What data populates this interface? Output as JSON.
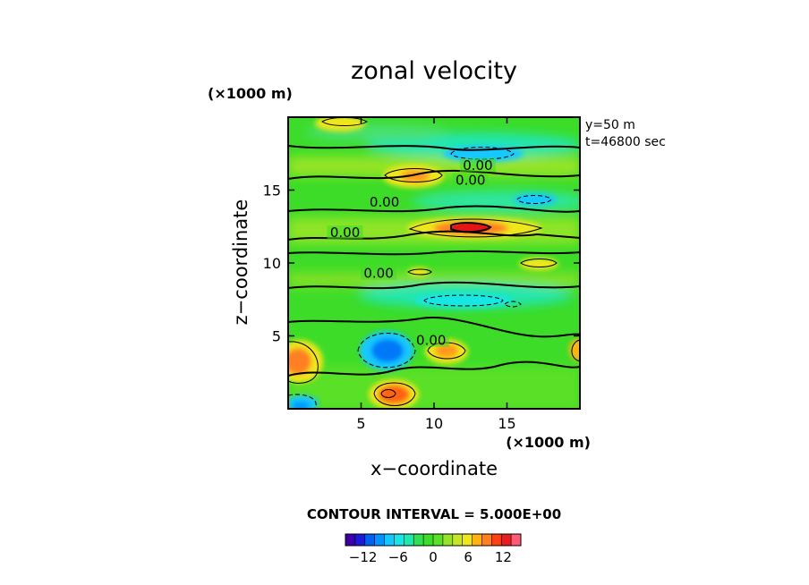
{
  "chart_data": {
    "type": "heatmap",
    "title": "zonal velocity",
    "xlabel": "x−coordinate",
    "ylabel": "z−coordinate",
    "x_scale_label": "(×1000 m)",
    "y_scale_label": "(×1000 m)",
    "xlim": [
      0,
      20
    ],
    "ylim": [
      0,
      20
    ],
    "x_ticks": [
      {
        "value": 5,
        "label": "5"
      },
      {
        "value": 10,
        "label": "10"
      },
      {
        "value": 15,
        "label": "15"
      }
    ],
    "y_ticks": [
      {
        "value": 5,
        "label": "5"
      },
      {
        "value": 10,
        "label": "10"
      },
      {
        "value": 15,
        "label": "15"
      }
    ],
    "annotations": [
      "y=50 m",
      "t=46800 sec"
    ],
    "contour_interval_text": "CONTOUR INTERVAL = 5.000E+00",
    "contour_labels": [
      {
        "text": "0.00",
        "x": 13.0,
        "y": 16.5
      },
      {
        "text": "0.00",
        "x": 12.5,
        "y": 15.5
      },
      {
        "text": "0.00",
        "x": 6.6,
        "y": 14.0
      },
      {
        "text": "0.00",
        "x": 3.9,
        "y": 11.9
      },
      {
        "text": "0.00",
        "x": 6.2,
        "y": 9.1
      },
      {
        "text": "0.00",
        "x": 9.8,
        "y": 4.5
      }
    ],
    "colorbar": {
      "range": [
        -15,
        15
      ],
      "tick_labels": [
        {
          "value": -12,
          "label": "−12"
        },
        {
          "value": -6,
          "label": "−6"
        },
        {
          "value": 0,
          "label": "0"
        },
        {
          "value": 6,
          "label": "6"
        },
        {
          "value": 12,
          "label": "12"
        }
      ],
      "colors": [
        "#3d00a8",
        "#1a1adc",
        "#0060f0",
        "#0094ff",
        "#14c8ff",
        "#18e6e6",
        "#20e6b0",
        "#30e050",
        "#3cdc28",
        "#5ae028",
        "#96e428",
        "#c8e628",
        "#f0e61e",
        "#ffb414",
        "#ff8020",
        "#ff4014",
        "#e61e1e",
        "#ff5a78"
      ]
    },
    "features": [
      {
        "kind": "positive",
        "x": 12.8,
        "y": 12.3,
        "peak": 13
      },
      {
        "kind": "positive",
        "x": 7.2,
        "y": 1.0,
        "peak": 9
      },
      {
        "kind": "positive",
        "x": 0.6,
        "y": 3.4,
        "peak": 8
      },
      {
        "kind": "positive",
        "x": 10.8,
        "y": 3.9,
        "peak": 7
      },
      {
        "kind": "positive",
        "x": 8.6,
        "y": 16.1,
        "peak": 7
      },
      {
        "kind": "positive",
        "x": 3.5,
        "y": 19.4,
        "peak": 6
      },
      {
        "kind": "positive",
        "x": 19.8,
        "y": 4.0,
        "peak": 5
      },
      {
        "kind": "positive",
        "x": 17.2,
        "y": 10.1,
        "peak": 4
      },
      {
        "kind": "negative",
        "x": 6.5,
        "y": 4.2,
        "peak": -10
      },
      {
        "kind": "negative",
        "x": 11.7,
        "y": 17.6,
        "peak": -6
      },
      {
        "kind": "negative",
        "x": 17.0,
        "y": 14.6,
        "peak": -4
      },
      {
        "kind": "negative",
        "x": 12.0,
        "y": 7.6,
        "peak": -4
      },
      {
        "kind": "negative",
        "x": 1.3,
        "y": 0.5,
        "peak": -5
      }
    ]
  }
}
